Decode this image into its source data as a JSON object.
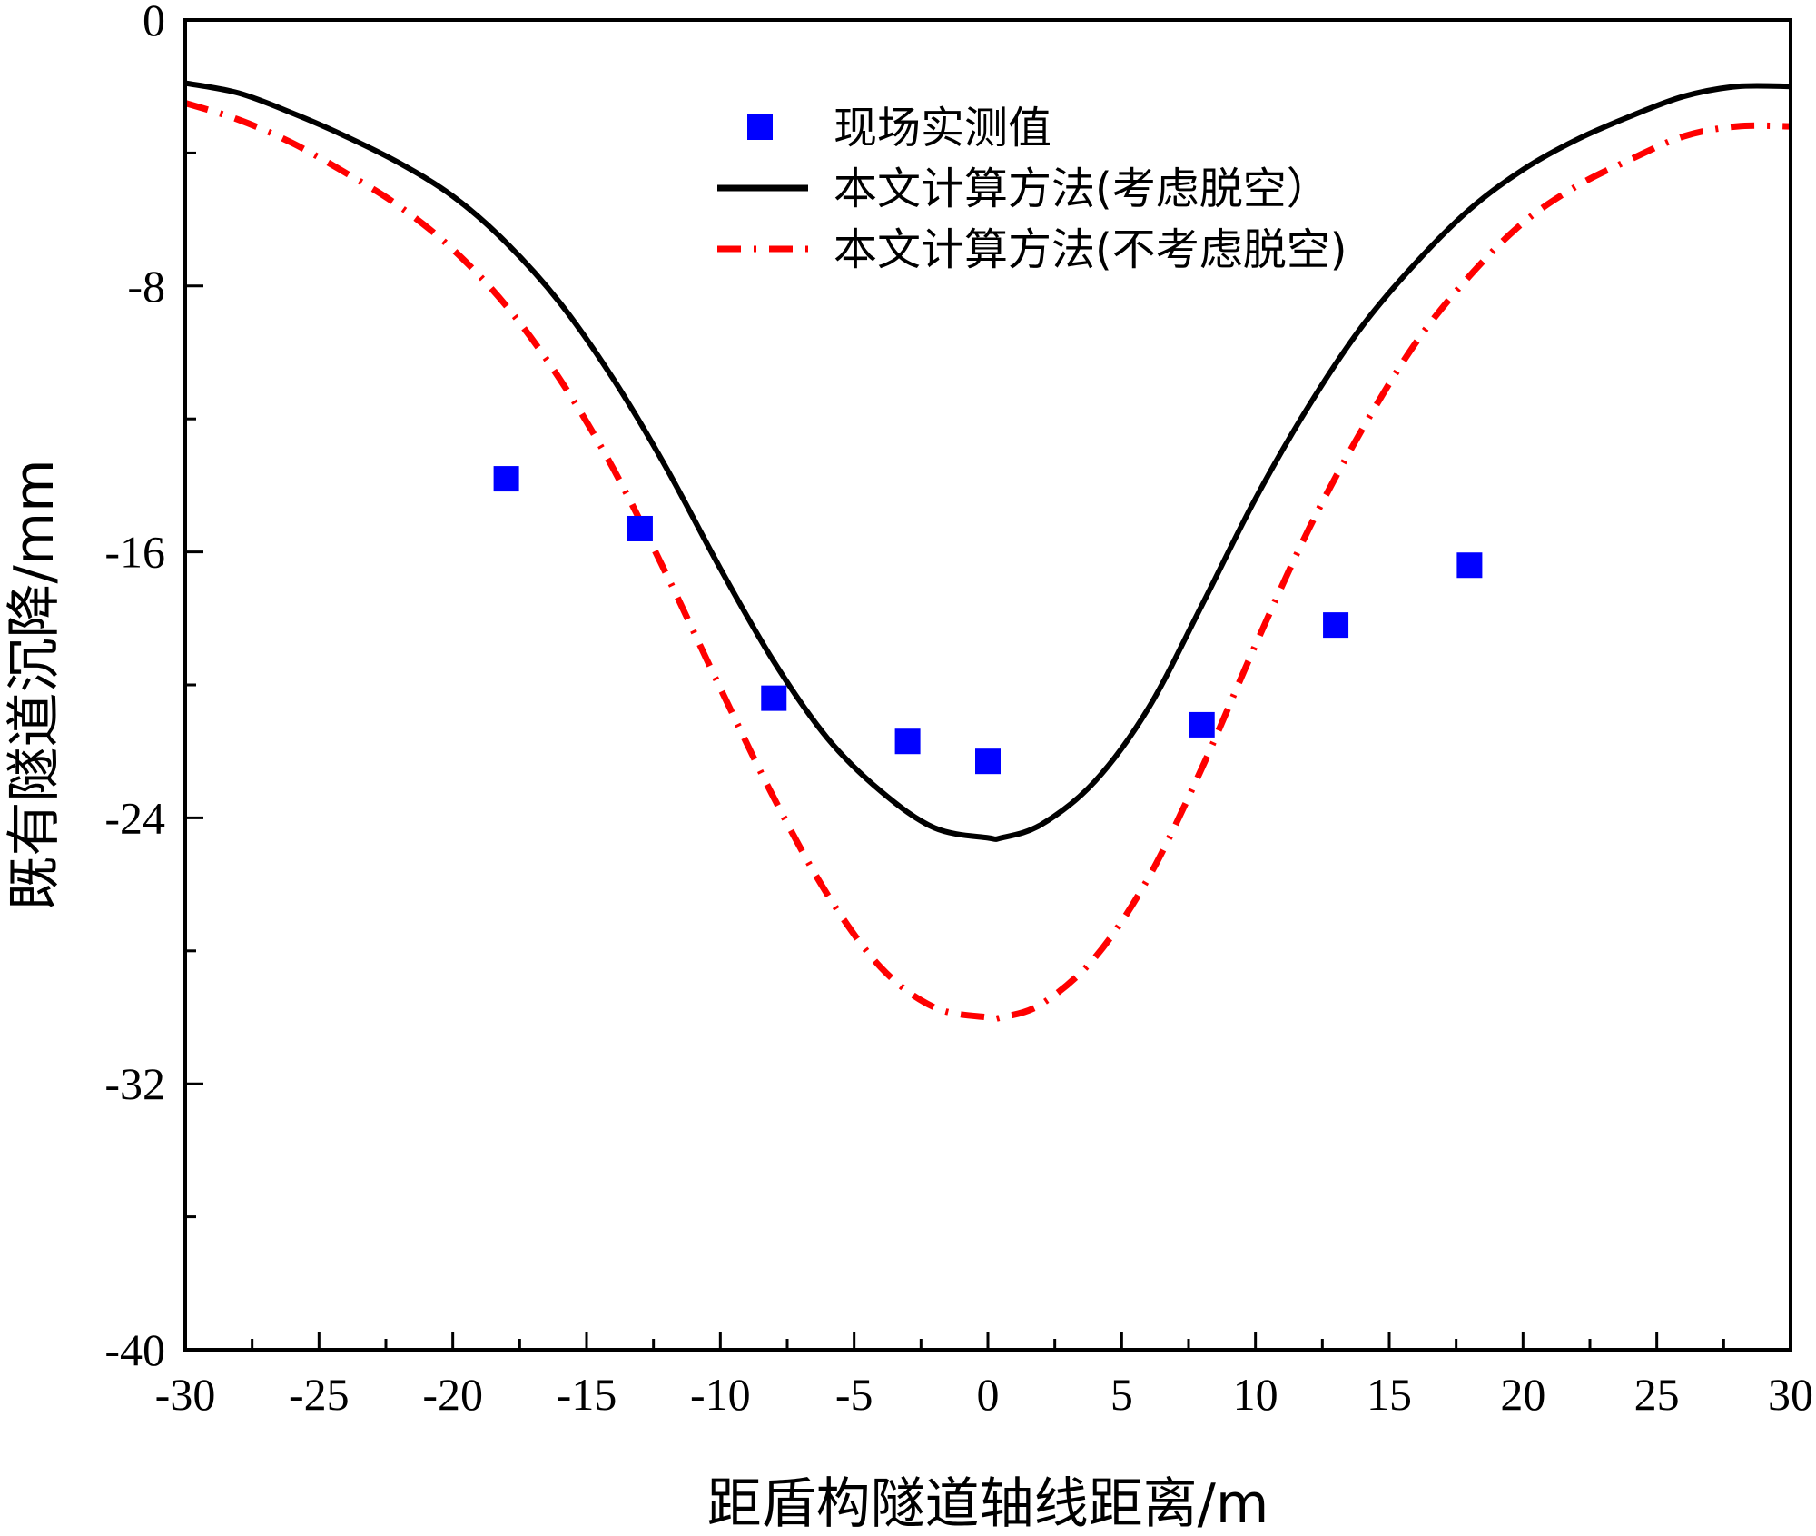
{
  "chart_data": {
    "type": "line",
    "title": "",
    "xlabel": "距盾构隧道轴线距离/m",
    "ylabel": "既有隧道沉降/mm",
    "xlim": [
      -30,
      30
    ],
    "ylim": [
      -40,
      0
    ],
    "x_ticks": [
      -30,
      -25,
      -20,
      -15,
      -10,
      -5,
      0,
      5,
      10,
      15,
      20,
      25,
      30
    ],
    "y_ticks": [
      0,
      -8,
      -16,
      -24,
      -32,
      -40
    ],
    "x_minor_step": 2.5,
    "y_minor_step": 4,
    "grid": false,
    "legend_position": "top-center",
    "series": [
      {
        "name": "现场实测值",
        "kind": "scatter",
        "marker": "square",
        "color": "#0000ff",
        "x": [
          -18,
          -13,
          -8,
          -3,
          0,
          8,
          13,
          18
        ],
        "y": [
          -13.8,
          -15.3,
          -20.4,
          -21.7,
          -22.3,
          -21.2,
          -18.2,
          -16.4
        ]
      },
      {
        "name": "本文计算方法(考虑脱空）",
        "kind": "line",
        "style": "solid",
        "color": "#000000",
        "x": [
          -30,
          -28,
          -26,
          -24,
          -22,
          -20,
          -18,
          -16,
          -14,
          -12,
          -10,
          -8,
          -6,
          -4,
          -2,
          0,
          0.5,
          2,
          4,
          6,
          8,
          10,
          12,
          14,
          16,
          18,
          20,
          22,
          24,
          26,
          28,
          30
        ],
        "y": [
          -1.9,
          -2.2,
          -2.8,
          -3.5,
          -4.3,
          -5.3,
          -6.7,
          -8.5,
          -10.8,
          -13.5,
          -16.5,
          -19.3,
          -21.6,
          -23.2,
          -24.3,
          -24.6,
          -24.6,
          -24.2,
          -22.9,
          -20.7,
          -17.6,
          -14.4,
          -11.6,
          -9.2,
          -7.3,
          -5.7,
          -4.5,
          -3.6,
          -2.9,
          -2.3,
          -2.0,
          -2.0
        ]
      },
      {
        "name": "本文计算方法(不考虑脱空)",
        "kind": "line",
        "style": "dash-dot",
        "color": "#ff0000",
        "x": [
          -30,
          -28,
          -26,
          -24,
          -22,
          -20,
          -18,
          -16,
          -14,
          -12,
          -10,
          -8,
          -6,
          -4,
          -2,
          0,
          0.5,
          2,
          4,
          6,
          8,
          10,
          12,
          14,
          16,
          18,
          20,
          22,
          24,
          26,
          28,
          30
        ],
        "y": [
          -2.5,
          -3.0,
          -3.7,
          -4.6,
          -5.6,
          -6.9,
          -8.6,
          -10.8,
          -13.5,
          -16.7,
          -20.1,
          -23.4,
          -26.3,
          -28.5,
          -29.7,
          -30.0,
          -30.0,
          -29.6,
          -28.2,
          -25.8,
          -22.5,
          -18.8,
          -15.3,
          -12.3,
          -9.7,
          -7.7,
          -6.1,
          -5.0,
          -4.2,
          -3.5,
          -3.2,
          -3.2
        ]
      }
    ]
  }
}
